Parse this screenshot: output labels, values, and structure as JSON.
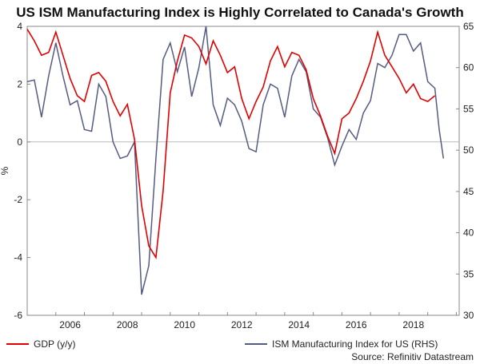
{
  "chart_data": {
    "type": "line",
    "title": "US ISM Manufacturing Index is Highly Correlated to Canada's Growth",
    "ylabel": "%",
    "y2label": "",
    "ylim": [
      -6,
      4
    ],
    "y2lim": [
      30,
      65
    ],
    "xlim": [
      2005.0,
      2020.1
    ],
    "yticks": [
      -6,
      -4,
      -2,
      0,
      2,
      4
    ],
    "yticks_labels": [
      "-6",
      "-4",
      "-2",
      "0",
      "2",
      "4"
    ],
    "y2ticks": [
      30,
      35,
      40,
      45,
      50,
      55,
      60,
      65
    ],
    "y2ticks_labels": [
      "30",
      "35",
      "40",
      "45",
      "50",
      "55",
      "60",
      "65"
    ],
    "xticks": [
      2006,
      2008,
      2010,
      2012,
      2014,
      2016,
      2018
    ],
    "xticks_labels": [
      "2006",
      "2008",
      "2010",
      "2012",
      "2014",
      "2016",
      "2018"
    ],
    "zero_line": 0,
    "source": "Source: Refinitiv Datastream",
    "colors": {
      "gdp": "#e00000",
      "ism": "#555b82",
      "zero": "#bbbbbb",
      "frame": "#888888"
    },
    "series": [
      {
        "name": "GDP (y/y)",
        "axis": "left",
        "x": [
          2005.0,
          2005.25,
          2005.5,
          2005.75,
          2006.0,
          2006.25,
          2006.5,
          2006.75,
          2007.0,
          2007.25,
          2007.5,
          2007.75,
          2008.0,
          2008.25,
          2008.5,
          2008.75,
          2009.0,
          2009.25,
          2009.5,
          2009.75,
          2010.0,
          2010.25,
          2010.5,
          2010.75,
          2011.0,
          2011.25,
          2011.5,
          2011.75,
          2012.0,
          2012.25,
          2012.5,
          2012.75,
          2013.0,
          2013.25,
          2013.5,
          2013.75,
          2014.0,
          2014.25,
          2014.5,
          2014.75,
          2015.0,
          2015.25,
          2015.5,
          2015.75,
          2016.0,
          2016.25,
          2016.5,
          2016.75,
          2017.0,
          2017.25,
          2017.5,
          2017.75,
          2018.0,
          2018.25,
          2018.5,
          2018.75,
          2019.0,
          2019.25
        ],
        "values": [
          3.9,
          3.5,
          3.0,
          3.1,
          3.8,
          3.0,
          2.2,
          1.6,
          1.4,
          2.3,
          2.4,
          2.1,
          1.4,
          0.9,
          1.3,
          0.1,
          -2.2,
          -3.6,
          -4.0,
          -1.7,
          1.7,
          2.8,
          3.7,
          3.6,
          3.3,
          2.7,
          3.5,
          3.0,
          2.4,
          2.6,
          1.5,
          0.8,
          1.4,
          1.9,
          2.8,
          3.3,
          2.6,
          3.1,
          3.0,
          2.5,
          1.5,
          0.9,
          0.2,
          -0.4,
          0.8,
          1.0,
          1.5,
          2.1,
          2.8,
          3.8,
          3.0,
          2.6,
          2.2,
          1.7,
          2.0,
          1.5,
          1.4,
          1.6
        ]
      },
      {
        "name": "ISM Manufacturing Index for US (RHS)",
        "axis": "right",
        "x": [
          2005.0,
          2005.25,
          2005.5,
          2005.75,
          2006.0,
          2006.25,
          2006.5,
          2006.75,
          2007.0,
          2007.25,
          2007.5,
          2007.75,
          2008.0,
          2008.25,
          2008.5,
          2008.75,
          2009.0,
          2009.25,
          2009.5,
          2009.75,
          2010.0,
          2010.25,
          2010.5,
          2010.75,
          2011.0,
          2011.25,
          2011.5,
          2011.75,
          2012.0,
          2012.25,
          2012.5,
          2012.75,
          2013.0,
          2013.25,
          2013.5,
          2013.75,
          2014.0,
          2014.25,
          2014.5,
          2014.75,
          2015.0,
          2015.25,
          2015.5,
          2015.75,
          2016.0,
          2016.25,
          2016.5,
          2016.75,
          2017.0,
          2017.25,
          2017.5,
          2017.75,
          2018.0,
          2018.25,
          2018.5,
          2018.75,
          2019.0,
          2019.25,
          2019.4,
          2019.55
        ],
        "values": [
          58.3,
          58.5,
          54.0,
          59.0,
          63.0,
          59.0,
          55.5,
          56.0,
          52.5,
          52.3,
          58.0,
          56.5,
          51.0,
          49.0,
          49.3,
          51.0,
          32.5,
          36.0,
          49.0,
          61.0,
          63.0,
          59.5,
          62.5,
          56.5,
          60.0,
          65.0,
          55.5,
          53.0,
          56.3,
          55.5,
          53.5,
          50.2,
          49.8,
          55.5,
          58.0,
          57.5,
          54.0,
          59.0,
          61.0,
          59.5,
          55.0,
          54.0,
          51.5,
          48.2,
          50.5,
          52.5,
          51.3,
          54.5,
          56.0,
          60.5,
          60.0,
          61.5,
          64.0,
          64.0,
          62.0,
          63.0,
          58.3,
          57.5,
          52.5,
          49.0
        ]
      }
    ]
  }
}
